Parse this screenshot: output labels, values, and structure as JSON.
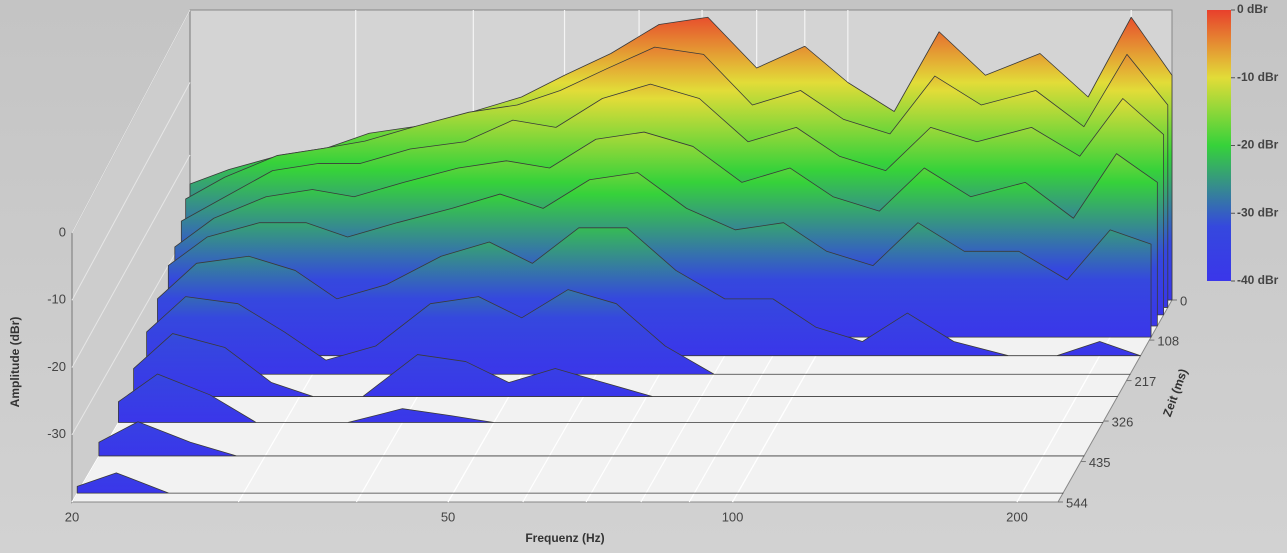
{
  "chart_data": {
    "type": "waterfall",
    "xlabel": "Frequenz (Hz)",
    "ylabel": "Amplitude (dBr)",
    "zlabel": "Zeit (ms)",
    "xscale": "log",
    "xlim": [
      20,
      221
    ],
    "xticks": [
      20,
      50,
      100,
      200
    ],
    "minor_grid": true,
    "ylim": [
      -40,
      0
    ],
    "yticks": [
      0,
      -10,
      -20,
      -30
    ],
    "zlim": [
      0,
      544
    ],
    "zticks": [
      0,
      108,
      217,
      326,
      435,
      544
    ],
    "colormap": [
      {
        "value": 0,
        "color": "#e8402c"
      },
      {
        "value": -10,
        "color": "#e2dc38"
      },
      {
        "value": -20,
        "color": "#36d23a"
      },
      {
        "value": -32,
        "color": "#3548de"
      },
      {
        "value": -40,
        "color": "#3a36ea"
      }
    ],
    "colorbar_ticks": [
      {
        "value": 0,
        "label": "0 dBr"
      },
      {
        "value": -10,
        "label": "-10 dBr"
      },
      {
        "value": -20,
        "label": "-20 dBr"
      },
      {
        "value": -30,
        "label": "-30 dBr"
      },
      {
        "value": -40,
        "label": "-40 dBr"
      }
    ],
    "frequencies": [
      20,
      22,
      25,
      28,
      31,
      35,
      40,
      45,
      50,
      56,
      63,
      71,
      80,
      90,
      100,
      112,
      125,
      140,
      160,
      180,
      200,
      221
    ],
    "series": [
      {
        "time": 0,
        "values": [
          -24,
          -22,
          -20,
          -19,
          -17,
          -16,
          -14,
          -12,
          -9,
          -6,
          -2,
          -1,
          -8,
          -5,
          -10,
          -14,
          -3,
          -9,
          -6,
          -12,
          -1,
          -9
        ]
      },
      {
        "time": 20,
        "values": [
          -25,
          -22,
          -19,
          -18,
          -17,
          -15,
          -13,
          -12,
          -10,
          -7,
          -4,
          -5,
          -12,
          -10,
          -14,
          -16,
          -8,
          -12,
          -10,
          -15,
          -5,
          -12
        ]
      },
      {
        "time": 40,
        "values": [
          -27,
          -24,
          -20,
          -19,
          -19,
          -17,
          -16,
          -13,
          -14,
          -10,
          -8,
          -10,
          -16,
          -14,
          -18,
          -20,
          -14,
          -16,
          -14,
          -18,
          -10,
          -15
        ]
      },
      {
        "time": 70,
        "values": [
          -29,
          -25,
          -22,
          -21,
          -22,
          -20,
          -18,
          -17,
          -18,
          -14,
          -13,
          -15,
          -20,
          -18,
          -22,
          -24,
          -18,
          -22,
          -20,
          -25,
          -16,
          -20
        ]
      },
      {
        "time": 100,
        "values": [
          -30,
          -26,
          -24,
          -24,
          -26,
          -24,
          -22,
          -20,
          -22,
          -18,
          -17,
          -22,
          -25,
          -24,
          -28,
          -30,
          -24,
          -28,
          -28,
          -32,
          -25,
          -27
        ]
      },
      {
        "time": 150,
        "values": [
          -32,
          -27,
          -26,
          -28,
          -32,
          -30,
          -26,
          -24,
          -27,
          -22,
          -22,
          -28,
          -32,
          -32,
          -36,
          -38,
          -34,
          -38,
          -40,
          -40,
          -38,
          -40
        ]
      },
      {
        "time": 200,
        "values": [
          -34,
          -29,
          -30,
          -34,
          -38,
          -36,
          -30,
          -29,
          -32,
          -28,
          -30,
          -36,
          -40,
          -40,
          -40,
          -40,
          -40,
          -40,
          -40,
          -40,
          -40,
          -40
        ]
      },
      {
        "time": 260,
        "values": [
          -36,
          -31,
          -33,
          -38,
          -40,
          -40,
          -34,
          -35,
          -38,
          -36,
          -38,
          -40,
          -40,
          -40,
          -40,
          -40,
          -40,
          -40,
          -40,
          -40,
          -40,
          -40
        ]
      },
      {
        "time": 330,
        "values": [
          -37,
          -33,
          -36,
          -40,
          -40,
          -40,
          -38,
          -39,
          -40,
          -40,
          -40,
          -40,
          -40,
          -40,
          -40,
          -40,
          -40,
          -40,
          -40,
          -40,
          -40,
          -40
        ]
      },
      {
        "time": 420,
        "values": [
          -38,
          -35,
          -38,
          -40,
          -40,
          -40,
          -40,
          -40,
          -40,
          -40,
          -40,
          -40,
          -40,
          -40,
          -40,
          -40,
          -40,
          -40,
          -40,
          -40,
          -40,
          -40
        ]
      },
      {
        "time": 520,
        "values": [
          -39,
          -37,
          -40,
          -40,
          -40,
          -40,
          -40,
          -40,
          -40,
          -40,
          -40,
          -40,
          -40,
          -40,
          -40,
          -40,
          -40,
          -40,
          -40,
          -40,
          -40,
          -40
        ]
      }
    ]
  }
}
